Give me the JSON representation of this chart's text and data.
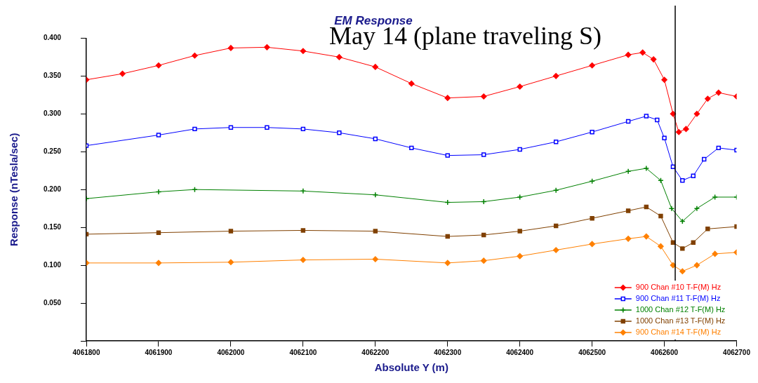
{
  "chart_data": {
    "type": "line",
    "title": "EM Response",
    "xlabel": "Absolute Y (m)",
    "ylabel": "Response (nTesla/sec)",
    "annotations": [
      "May 14 (plane traveling S)"
    ],
    "xlim": [
      4061800,
      4062700
    ],
    "xticks": [
      4061800,
      4061900,
      4062000,
      4062100,
      4062200,
      4062300,
      4062400,
      4062500,
      4062600,
      4062700
    ],
    "ylim": [
      0,
      0.4
    ],
    "yticks": [
      {
        "value": 0,
        "label": null
      },
      {
        "value": 0.05,
        "label": "0.050"
      },
      {
        "value": 0.1,
        "label": "0.100"
      },
      {
        "value": 0.15,
        "label": "0.150"
      },
      {
        "value": 0.2,
        "label": "0.200"
      },
      {
        "value": 0.25,
        "label": "0.250"
      },
      {
        "value": 0.3,
        "label": "0.300"
      },
      {
        "value": 0.35,
        "label": "0.350"
      },
      {
        "value": 0.4,
        "label": "0.400"
      }
    ],
    "grid": false,
    "legend": "bottom right",
    "ref_lines": [
      {
        "axis": "x",
        "value": 4062615,
        "color": "#000000"
      }
    ],
    "series": [
      {
        "name": "900 Chan #10 T-F(M) Hz",
        "color": "#ff0000",
        "marker": "diamond",
        "x": [
          4061800,
          4061850,
          4061900,
          4061950,
          4062000,
          4062050,
          4062100,
          4062150,
          4062200,
          4062250,
          4062300,
          4062350,
          4062400,
          4062450,
          4062500,
          4062550,
          4062570,
          4062585,
          4062600,
          4062612,
          4062620,
          4062630,
          4062645,
          4062660,
          4062675,
          4062700
        ],
        "values": [
          0.345,
          0.353,
          0.364,
          0.377,
          0.387,
          0.388,
          0.383,
          0.375,
          0.362,
          0.34,
          0.321,
          0.323,
          0.336,
          0.35,
          0.364,
          0.378,
          0.381,
          0.372,
          0.345,
          0.3,
          0.276,
          0.28,
          0.3,
          0.32,
          0.328,
          0.323
        ]
      },
      {
        "name": "900 Chan #11 T-F(M) Hz",
        "color": "#0000ff",
        "marker": "square",
        "x": [
          4061800,
          4061900,
          4061950,
          4062000,
          4062050,
          4062100,
          4062150,
          4062200,
          4062250,
          4062300,
          4062350,
          4062400,
          4062450,
          4062500,
          4062550,
          4062575,
          4062590,
          4062600,
          4062612,
          4062625,
          4062640,
          4062655,
          4062675,
          4062700
        ],
        "values": [
          0.258,
          0.272,
          0.28,
          0.282,
          0.282,
          0.28,
          0.275,
          0.267,
          0.255,
          0.245,
          0.246,
          0.253,
          0.263,
          0.276,
          0.29,
          0.297,
          0.292,
          0.268,
          0.23,
          0.212,
          0.218,
          0.24,
          0.255,
          0.252
        ]
      },
      {
        "name": "1000 Chan #12 T-F(M) Hz",
        "color": "#008000",
        "marker": "cross",
        "x": [
          4061800,
          4061900,
          4061950,
          4062100,
          4062200,
          4062300,
          4062350,
          4062400,
          4062450,
          4062500,
          4062550,
          4062575,
          4062595,
          4062610,
          4062625,
          4062645,
          4062670,
          4062700
        ],
        "values": [
          0.188,
          0.197,
          0.2,
          0.198,
          0.193,
          0.183,
          0.184,
          0.19,
          0.199,
          0.211,
          0.224,
          0.228,
          0.212,
          0.175,
          0.158,
          0.175,
          0.19,
          0.19
        ]
      },
      {
        "name": "1000 Chan #13 T-F(M) Hz",
        "color": "#804000",
        "marker": "square",
        "x": [
          4061800,
          4061900,
          4062000,
          4062100,
          4062200,
          4062300,
          4062350,
          4062400,
          4062450,
          4062500,
          4062550,
          4062575,
          4062595,
          4062612,
          4062625,
          4062640,
          4062660,
          4062700
        ],
        "values": [
          0.141,
          0.143,
          0.145,
          0.146,
          0.145,
          0.138,
          0.14,
          0.145,
          0.152,
          0.162,
          0.172,
          0.177,
          0.165,
          0.13,
          0.122,
          0.13,
          0.148,
          0.151
        ]
      },
      {
        "name": "900 Chan #14 T-F(M) Hz",
        "color": "#ff8000",
        "marker": "diamond",
        "x": [
          4061800,
          4061900,
          4062000,
          4062100,
          4062200,
          4062300,
          4062350,
          4062400,
          4062450,
          4062500,
          4062550,
          4062575,
          4062595,
          4062612,
          4062625,
          4062645,
          4062670,
          4062700
        ],
        "values": [
          0.103,
          0.103,
          0.104,
          0.107,
          0.108,
          0.103,
          0.106,
          0.112,
          0.12,
          0.128,
          0.135,
          0.138,
          0.125,
          0.1,
          0.092,
          0.1,
          0.115,
          0.117
        ]
      }
    ]
  }
}
